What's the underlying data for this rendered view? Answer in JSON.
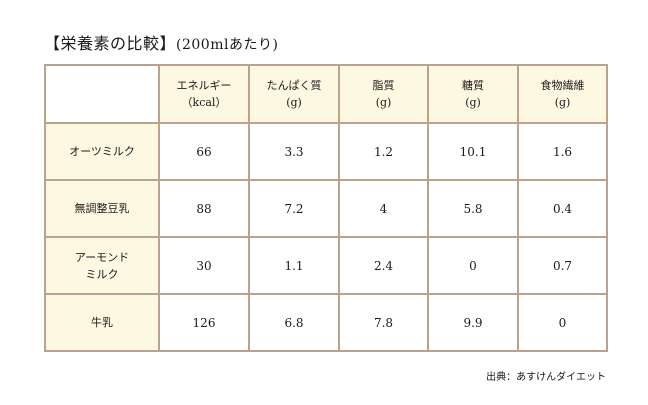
{
  "title": {
    "main": "【栄養素の比較】",
    "sub": "(200mlあたり)"
  },
  "table": {
    "columns": [
      {
        "line1": "エネルギー",
        "line2": "（kcal）"
      },
      {
        "line1": "たんぱく質",
        "line2": "(g)"
      },
      {
        "line1": "脂質",
        "line2": "(g)"
      },
      {
        "line1": "糖質",
        "line2": "(g)"
      },
      {
        "line1": "食物繊維",
        "line2": "(g)"
      }
    ],
    "rows": [
      {
        "name1": "オーツミルク",
        "name2": "",
        "cells": [
          "66",
          "3.3",
          "1.2",
          "10.1",
          "1.6"
        ]
      },
      {
        "name1": "無調整豆乳",
        "name2": "",
        "cells": [
          "88",
          "7.2",
          "4",
          "5.8",
          "0.4"
        ]
      },
      {
        "name1": "アーモンド",
        "name2": "ミルク",
        "cells": [
          "30",
          "1.1",
          "2.4",
          "0",
          "0.7"
        ]
      },
      {
        "name1": "牛乳",
        "name2": "",
        "cells": [
          "126",
          "6.8",
          "7.8",
          "9.9",
          "0"
        ]
      }
    ]
  },
  "source": "出典：あすけんダイエット",
  "colors": {
    "border": "#b8a48a",
    "header_fill": "#fdf8e2"
  }
}
